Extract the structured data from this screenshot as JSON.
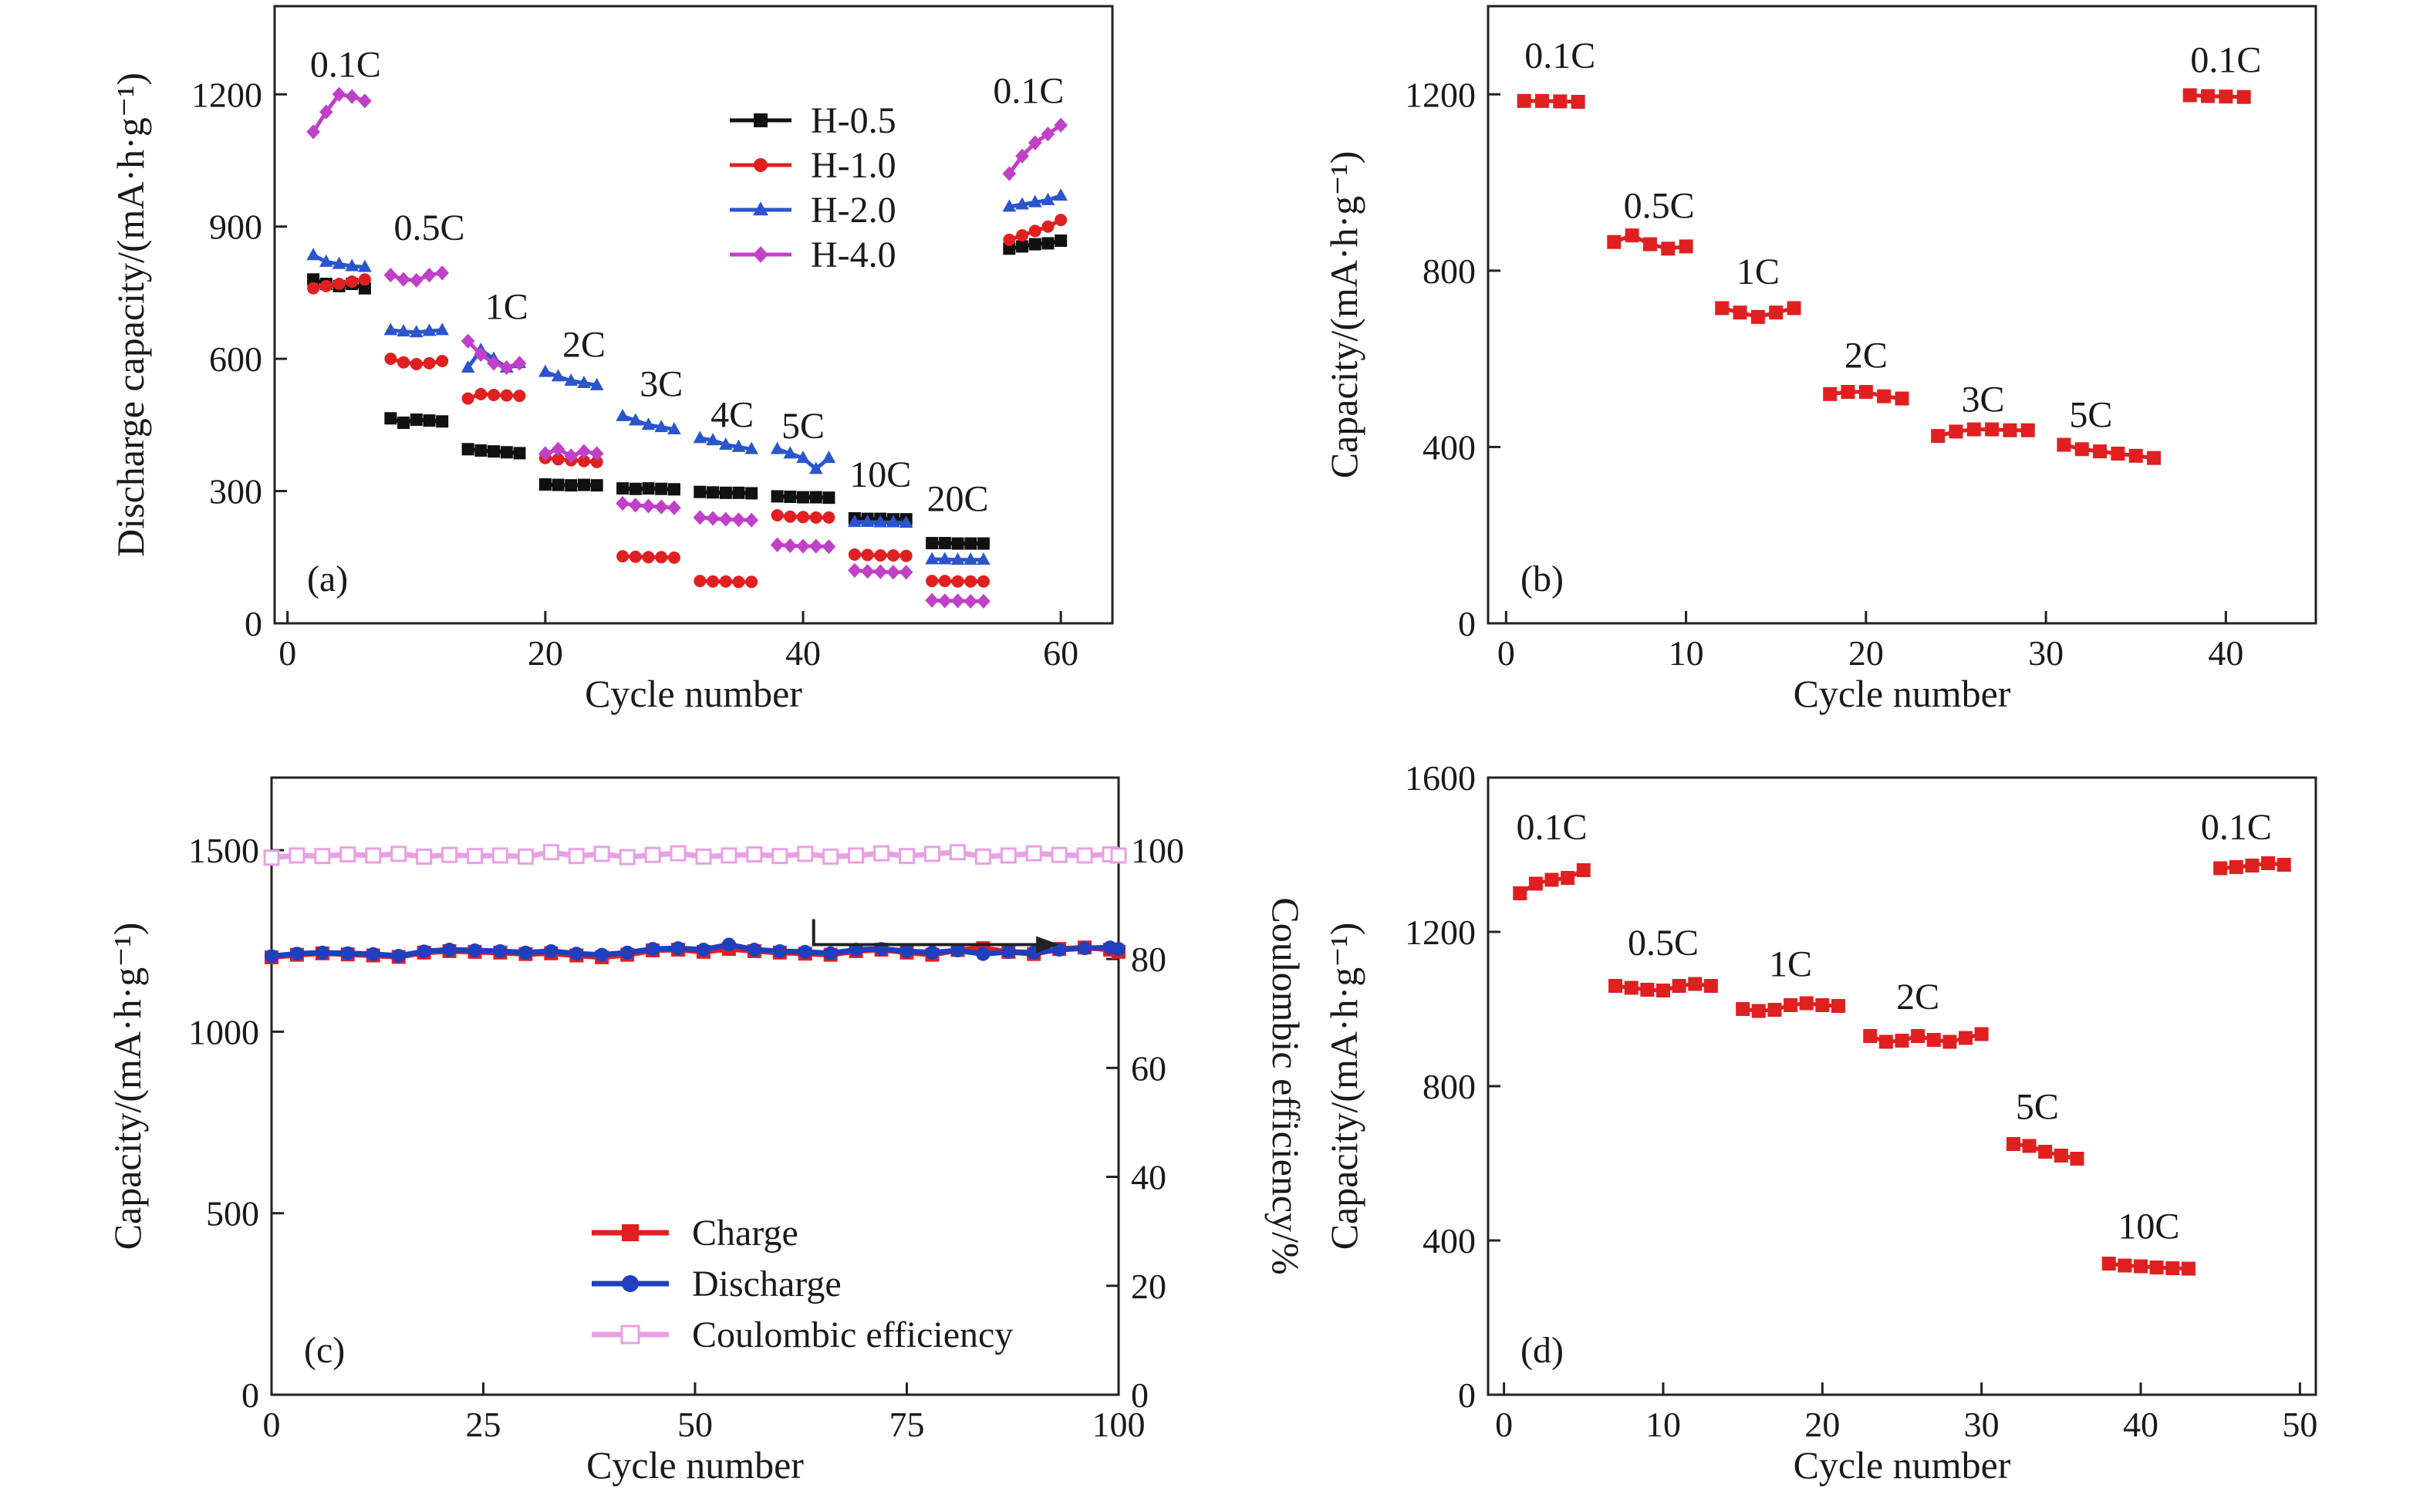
{
  "chart_data": [
    {
      "type": "scatter",
      "panel_label": "(a)",
      "xlabel": "Cycle number",
      "ylabel": "Discharge capacity/(mA·h·g⁻¹)",
      "xlim": [
        -1,
        64
      ],
      "ylim": [
        0,
        1400
      ],
      "xticks": [
        0,
        20,
        40,
        60
      ],
      "yticks": [
        0,
        300,
        600,
        900,
        1200
      ],
      "legend_position": "top-right",
      "series": [
        {
          "name": "H-0.5",
          "color": "#111111",
          "marker": "square",
          "x": [
            2,
            3,
            4,
            5,
            6,
            8,
            9,
            10,
            11,
            12,
            14,
            15,
            16,
            17,
            18,
            20,
            21,
            22,
            23,
            24,
            26,
            27,
            28,
            29,
            30,
            32,
            33,
            34,
            35,
            36,
            38,
            39,
            40,
            41,
            42,
            44,
            45,
            46,
            47,
            48,
            50,
            51,
            52,
            53,
            54,
            56,
            57,
            58,
            59,
            60
          ],
          "y": [
            780,
            770,
            765,
            770,
            760,
            465,
            455,
            462,
            460,
            458,
            395,
            392,
            390,
            388,
            386,
            315,
            314,
            313,
            314,
            313,
            306,
            305,
            306,
            305,
            304,
            298,
            297,
            296,
            296,
            295,
            288,
            287,
            286,
            286,
            285,
            238,
            237,
            237,
            236,
            236,
            182,
            182,
            181,
            181,
            181,
            850,
            855,
            860,
            862,
            868
          ]
        },
        {
          "name": "H-1.0",
          "color": "#e02020",
          "marker": "circle",
          "x": [
            2,
            3,
            4,
            5,
            6,
            8,
            9,
            10,
            11,
            12,
            14,
            15,
            16,
            17,
            18,
            20,
            21,
            22,
            23,
            24,
            26,
            27,
            28,
            29,
            30,
            32,
            33,
            34,
            35,
            36,
            38,
            39,
            40,
            41,
            42,
            44,
            45,
            46,
            47,
            48,
            50,
            51,
            52,
            53,
            54,
            56,
            57,
            58,
            59,
            60
          ],
          "y": [
            760,
            765,
            770,
            775,
            780,
            600,
            592,
            588,
            590,
            595,
            510,
            520,
            518,
            517,
            516,
            375,
            372,
            370,
            368,
            366,
            152,
            151,
            150,
            150,
            149,
            96,
            95,
            95,
            94,
            94,
            245,
            242,
            241,
            240,
            240,
            156,
            155,
            154,
            154,
            153,
            96,
            96,
            95,
            95,
            95,
            870,
            880,
            890,
            900,
            915
          ]
        },
        {
          "name": "H-2.0",
          "color": "#2a55cc",
          "marker": "triangle",
          "x": [
            2,
            3,
            4,
            5,
            6,
            8,
            9,
            10,
            11,
            12,
            14,
            15,
            16,
            17,
            18,
            20,
            21,
            22,
            23,
            24,
            26,
            27,
            28,
            29,
            30,
            32,
            33,
            34,
            35,
            36,
            38,
            39,
            40,
            41,
            42,
            44,
            45,
            46,
            47,
            48,
            50,
            51,
            52,
            53,
            54,
            56,
            57,
            58,
            59,
            60
          ],
          "y": [
            835,
            820,
            815,
            810,
            808,
            665,
            662,
            660,
            663,
            665,
            580,
            620,
            600,
            580,
            590,
            570,
            560,
            550,
            545,
            540,
            470,
            460,
            450,
            445,
            440,
            420,
            415,
            405,
            400,
            395,
            395,
            385,
            375,
            350,
            375,
            230,
            230,
            229,
            229,
            228,
            145,
            145,
            144,
            144,
            144,
            945,
            950,
            955,
            960,
            970
          ]
        },
        {
          "name": "H-4.0",
          "color": "#c040c8",
          "marker": "diamond",
          "x": [
            2,
            3,
            4,
            5,
            6,
            8,
            9,
            10,
            11,
            12,
            14,
            15,
            16,
            17,
            18,
            20,
            21,
            22,
            23,
            24,
            26,
            27,
            28,
            29,
            30,
            32,
            33,
            34,
            35,
            36,
            38,
            39,
            40,
            41,
            42,
            44,
            45,
            46,
            47,
            48,
            50,
            51,
            52,
            53,
            54,
            56,
            57,
            58,
            59,
            60
          ],
          "y": [
            1115,
            1160,
            1200,
            1195,
            1185,
            790,
            780,
            778,
            790,
            795,
            640,
            610,
            590,
            580,
            590,
            385,
            395,
            380,
            390,
            385,
            272,
            268,
            266,
            264,
            262,
            240,
            238,
            236,
            235,
            234,
            178,
            176,
            175,
            175,
            174,
            120,
            118,
            117,
            116,
            116,
            52,
            51,
            51,
            50,
            50,
            1020,
            1060,
            1090,
            1110,
            1130
          ]
        }
      ],
      "annotations": [
        {
          "text": "0.1C",
          "x": 4.5,
          "y": 1240
        },
        {
          "text": "0.5C",
          "x": 11,
          "y": 870
        },
        {
          "text": "1C",
          "x": 17,
          "y": 690
        },
        {
          "text": "2C",
          "x": 23,
          "y": 605
        },
        {
          "text": "3C",
          "x": 29,
          "y": 515
        },
        {
          "text": "4C",
          "x": 34.5,
          "y": 445
        },
        {
          "text": "5C",
          "x": 40,
          "y": 420
        },
        {
          "text": "10C",
          "x": 46,
          "y": 310
        },
        {
          "text": "20C",
          "x": 52,
          "y": 255
        },
        {
          "text": "0.1C",
          "x": 57.5,
          "y": 1180
        }
      ]
    },
    {
      "type": "scatter",
      "panel_label": "(b)",
      "xlabel": "Cycle number",
      "ylabel": "Capacity/(mA·h·g⁻¹)",
      "xlim": [
        -1,
        45
      ],
      "ylim": [
        0,
        1400
      ],
      "xticks": [
        0,
        10,
        20,
        30,
        40
      ],
      "yticks": [
        0,
        400,
        800,
        1200
      ],
      "series": [
        {
          "color": "#e02020",
          "marker": "square",
          "x": [
            1,
            2,
            3,
            4,
            6,
            7,
            8,
            9,
            10,
            12,
            13,
            14,
            15,
            16,
            18,
            19,
            20,
            21,
            22,
            24,
            25,
            26,
            27,
            28,
            29,
            31,
            32,
            33,
            34,
            35,
            36,
            38,
            39,
            40,
            41
          ],
          "y": [
            1185,
            1185,
            1184,
            1183,
            865,
            880,
            860,
            850,
            855,
            715,
            705,
            695,
            705,
            715,
            520,
            525,
            525,
            515,
            510,
            425,
            435,
            440,
            440,
            438,
            438,
            405,
            395,
            390,
            385,
            380,
            375,
            1198,
            1196,
            1195,
            1194
          ]
        }
      ],
      "annotations": [
        {
          "text": "0.1C",
          "x": 3,
          "y": 1260
        },
        {
          "text": "0.5C",
          "x": 8.5,
          "y": 920
        },
        {
          "text": "1C",
          "x": 14,
          "y": 770
        },
        {
          "text": "2C",
          "x": 20,
          "y": 580
        },
        {
          "text": "3C",
          "x": 26.5,
          "y": 480
        },
        {
          "text": "5C",
          "x": 32.5,
          "y": 445
        },
        {
          "text": "0.1C",
          "x": 40,
          "y": 1250
        }
      ]
    },
    {
      "type": "line",
      "panel_label": "(c)",
      "xlabel": "Cycle number",
      "ylabel": "Capacity/(mA·h·g⁻¹)",
      "y2label": "Coulombic efficiency/%",
      "xlim": [
        0,
        100
      ],
      "ylim": [
        0,
        1700
      ],
      "y2lim": [
        0,
        113.3
      ],
      "xticks": [
        0,
        25,
        50,
        75,
        100
      ],
      "yticks": [
        0,
        500,
        1000,
        1500
      ],
      "y2ticks": [
        0,
        20,
        40,
        60,
        80,
        100
      ],
      "legend_position": "bottom-center",
      "arrow": {
        "from": [
          64,
          1310
        ],
        "corner": [
          64,
          1240
        ],
        "to": [
          93,
          1240
        ],
        "direction": "right"
      },
      "series": [
        {
          "name": "Charge",
          "color": "#e02020",
          "marker": "square",
          "axis": "left",
          "x": [
            0,
            3,
            6,
            9,
            12,
            15,
            18,
            21,
            24,
            27,
            30,
            33,
            36,
            39,
            42,
            45,
            48,
            51,
            54,
            57,
            60,
            63,
            66,
            69,
            72,
            75,
            78,
            81,
            84,
            87,
            90,
            93,
            96,
            99,
            100
          ],
          "y": [
            1205,
            1212,
            1216,
            1213,
            1210,
            1206,
            1218,
            1222,
            1220,
            1218,
            1214,
            1216,
            1210,
            1205,
            1212,
            1224,
            1226,
            1220,
            1228,
            1222,
            1218,
            1215,
            1212,
            1222,
            1226,
            1218,
            1212,
            1225,
            1230,
            1220,
            1214,
            1228,
            1232,
            1226,
            1220
          ]
        },
        {
          "name": "Discharge",
          "color": "#1f3fbf",
          "marker": "circle",
          "axis": "left",
          "x": [
            0,
            3,
            6,
            9,
            12,
            15,
            18,
            21,
            24,
            27,
            30,
            33,
            36,
            39,
            42,
            45,
            48,
            51,
            54,
            57,
            60,
            63,
            66,
            69,
            72,
            75,
            78,
            81,
            84,
            87,
            90,
            93,
            96,
            99,
            100
          ],
          "y": [
            1208,
            1215,
            1218,
            1216,
            1214,
            1209,
            1221,
            1226,
            1224,
            1222,
            1218,
            1222,
            1215,
            1212,
            1218,
            1228,
            1230,
            1226,
            1240,
            1226,
            1222,
            1220,
            1216,
            1226,
            1228,
            1222,
            1218,
            1224,
            1214,
            1220,
            1218,
            1226,
            1230,
            1232,
            1228
          ]
        },
        {
          "name": "Coulombic efficiency",
          "color": "#e8a0e4",
          "marker": "open-square",
          "axis": "right",
          "x": [
            0,
            3,
            6,
            9,
            12,
            15,
            18,
            21,
            24,
            27,
            30,
            33,
            36,
            39,
            42,
            45,
            48,
            51,
            54,
            57,
            60,
            63,
            66,
            69,
            72,
            75,
            78,
            81,
            84,
            87,
            90,
            93,
            96,
            99,
            100
          ],
          "y": [
            98.6,
            99.0,
            98.9,
            99.2,
            99.0,
            99.3,
            98.8,
            99.1,
            98.9,
            99.0,
            98.8,
            99.6,
            98.9,
            99.3,
            98.7,
            99.1,
            99.4,
            98.8,
            99.0,
            99.2,
            98.9,
            99.3,
            98.8,
            99.0,
            99.4,
            98.9,
            99.3,
            99.6,
            98.8,
            99.0,
            99.4,
            99.1,
            99.0,
            99.2,
            99.0
          ]
        }
      ]
    },
    {
      "type": "scatter",
      "panel_label": "(d)",
      "xlabel": "Cycle number",
      "ylabel": "Capacity/(mA·h·g⁻¹)",
      "xlim": [
        -1,
        51
      ],
      "ylim": [
        0,
        1600
      ],
      "xticks": [
        0,
        10,
        20,
        30,
        40,
        50
      ],
      "yticks": [
        0,
        400,
        800,
        1200,
        1600
      ],
      "series": [
        {
          "color": "#e02020",
          "marker": "square",
          "x": [
            1,
            2,
            3,
            4,
            5,
            7,
            8,
            9,
            10,
            11,
            12,
            13,
            15,
            16,
            17,
            18,
            19,
            20,
            21,
            23,
            24,
            25,
            26,
            27,
            28,
            29,
            30,
            32,
            33,
            34,
            35,
            36,
            38,
            39,
            40,
            41,
            42,
            43,
            45,
            46,
            47,
            48,
            49
          ],
          "y": [
            1300,
            1325,
            1335,
            1340,
            1360,
            1060,
            1055,
            1050,
            1048,
            1060,
            1065,
            1060,
            1000,
            995,
            998,
            1010,
            1015,
            1010,
            1008,
            930,
            915,
            918,
            930,
            920,
            915,
            925,
            935,
            650,
            645,
            630,
            620,
            612,
            340,
            335,
            333,
            330,
            328,
            327,
            1365,
            1368,
            1372,
            1378,
            1374
          ]
        }
      ],
      "annotations": [
        {
          "text": "0.1C",
          "x": 3,
          "y": 1440
        },
        {
          "text": "0.5C",
          "x": 10,
          "y": 1140
        },
        {
          "text": "1C",
          "x": 18,
          "y": 1085
        },
        {
          "text": "2C",
          "x": 26,
          "y": 1000
        },
        {
          "text": "5C",
          "x": 33.5,
          "y": 715
        },
        {
          "text": "10C",
          "x": 40.5,
          "y": 405
        },
        {
          "text": "0.1C",
          "x": 46,
          "y": 1440
        }
      ]
    }
  ]
}
